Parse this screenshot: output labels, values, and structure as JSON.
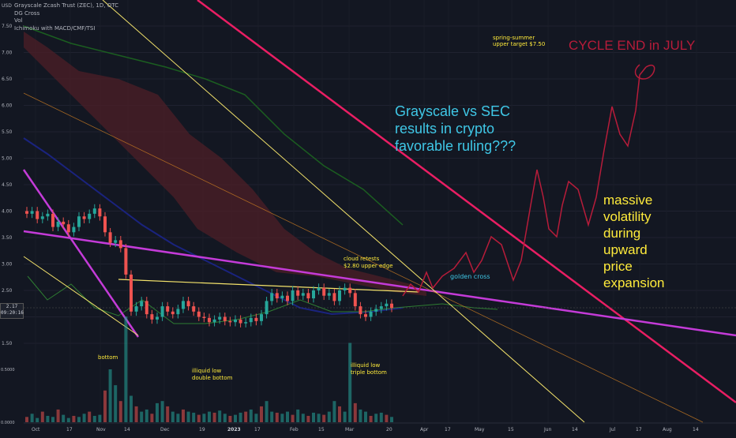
{
  "header": {
    "currency": "USD",
    "legend": [
      "Grayscale Zcash Trust (ZEC), 1D, OTC",
      "DG Cross",
      "Vol",
      "Ichimoku with MACD/CMF/TSI"
    ]
  },
  "price_axis": {
    "ticks": [
      "7.50",
      "7.00",
      "6.50",
      "6.00",
      "5.50",
      "5.00",
      "4.50",
      "4.00",
      "3.50",
      "3.00",
      "2.50",
      "2.00",
      "1.50"
    ],
    "current_price": "2.17",
    "countdown": "09:20:16"
  },
  "volume_axis": {
    "ticks": [
      "1.0000",
      "0.5000",
      "0.0000"
    ]
  },
  "time_axis": {
    "ticks": [
      "Oct",
      "17",
      "Nov",
      "14",
      "Dec",
      "19",
      "2023",
      "17",
      "Feb",
      "15",
      "Mar",
      "20",
      "Apr",
      "17",
      "May",
      "15",
      "Jun",
      "14",
      "Jul",
      "17",
      "Aug",
      "14"
    ]
  },
  "annotations": {
    "grayscale_sec": [
      "Grayscale vs SEC",
      "results in crypto",
      "favorable ruling???"
    ],
    "cycle_end": "CYCLE END in JULY",
    "spring_summer": [
      "spring-summer",
      "upper target $7.50"
    ],
    "massive": [
      "massive",
      "volatility",
      "during",
      "upward",
      "price",
      "expansion"
    ],
    "golden_cross": "golden cross",
    "cloud_retests": [
      "cloud retests",
      "$2.80 upper edge"
    ],
    "bottom": "bottom",
    "double_bottom": [
      "illiquid low",
      "double bottom"
    ],
    "triple_bottom": [
      "illiquid low",
      "triple bottom"
    ]
  },
  "colors": {
    "background": "#131722",
    "up_candle": "#26a69a",
    "down_candle": "#ef5350",
    "cycle_line": "#e91e63",
    "magenta_trend": "#c43bd8",
    "yellow_line": "#f4e36b",
    "ma_blue": "#1a237e",
    "ma_green": "#1b5e20",
    "cloud_fill": "#4e1f27",
    "annotation_cyan": "#3fc7e6",
    "annotation_yellow": "#ffeb3b",
    "projection": "#b71c3a"
  },
  "chart_data": {
    "type": "candlestick",
    "title": "Grayscale Zcash Trust (ZEC), 1D, OTC",
    "ylabel": "USD",
    "ylim": [
      1.5,
      7.75
    ],
    "weekly_closes": [
      {
        "x": "Oct",
        "y": 3.9
      },
      {
        "x": "17",
        "y": 3.7
      },
      {
        "x": "Nov",
        "y": 3.95
      },
      {
        "x": "14",
        "y": 2.05
      },
      {
        "x": "Dec",
        "y": 2.1
      },
      {
        "x": "19",
        "y": 1.95
      },
      {
        "x": "2023",
        "y": 1.9
      },
      {
        "x": "17",
        "y": 2.35
      },
      {
        "x": "Feb",
        "y": 2.4
      },
      {
        "x": "15",
        "y": 2.45
      },
      {
        "x": "Mar",
        "y": 2.05
      },
      {
        "x": "20",
        "y": 2.17
      }
    ],
    "projection": [
      {
        "x": "Apr",
        "y": 2.6
      },
      {
        "x": "17",
        "y": 3.2
      },
      {
        "x": "May",
        "y": 3.3
      },
      {
        "x": "15",
        "y": 3.6
      },
      {
        "x": "Jun",
        "y": 4.7
      },
      {
        "x": "14",
        "y": 3.8
      },
      {
        "x": "Jul",
        "y": 6.0
      },
      {
        "x": "17",
        "y": 6.7
      }
    ]
  }
}
